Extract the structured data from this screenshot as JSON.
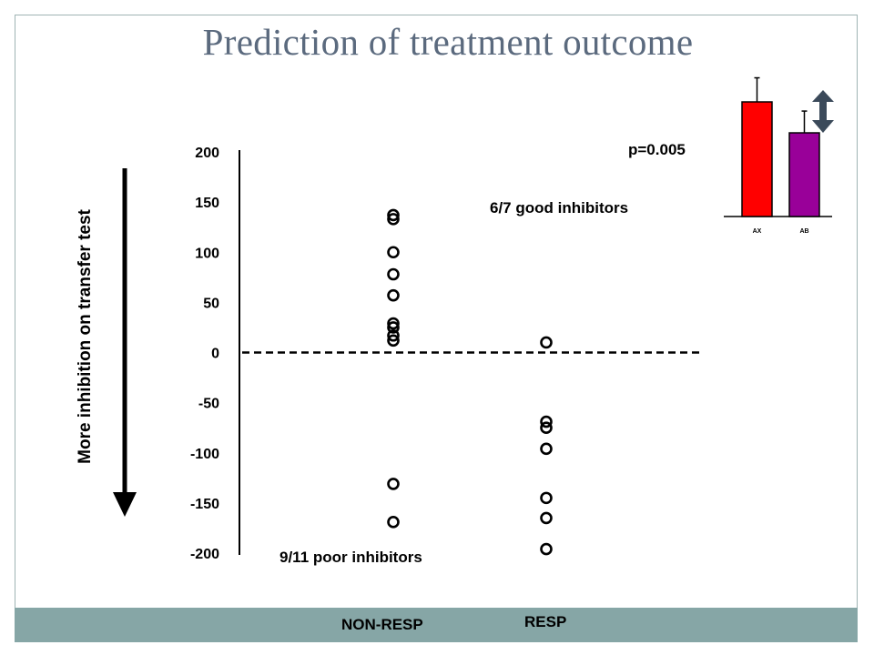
{
  "slide": {
    "title": "Prediction of treatment outcome"
  },
  "annotations": {
    "y_arrow_label": "More inhibition on transfer test",
    "good_inhibitors": "6/7 good inhibitors",
    "poor_inhibitors": "9/11 poor inhibitors",
    "p_value": "p=0.005"
  },
  "footer": {
    "non_resp": "NON-RESP",
    "resp": "RESP"
  },
  "chart_data": [
    {
      "type": "scatter",
      "yticks": [
        200,
        150,
        100,
        50,
        0,
        -50,
        -100,
        -150,
        -200
      ],
      "ylim": [
        -200,
        200
      ],
      "reference_line": 0,
      "series": [
        {
          "group": "NON-RESP",
          "values": [
            137,
            133,
            100,
            78,
            57,
            29,
            25,
            17,
            12,
            -131,
            -169
          ]
        },
        {
          "group": "RESP",
          "values": [
            10,
            -69,
            -75,
            -96,
            -145,
            -165,
            -196
          ]
        }
      ]
    },
    {
      "type": "bar",
      "categories": [
        "AX",
        "AB"
      ],
      "values": [
        100,
        73
      ],
      "error": [
        21,
        19
      ],
      "colors": [
        "#ff0000",
        "#990099"
      ]
    }
  ],
  "colors": {
    "frame": "#9fb3b3",
    "footer": "#86a6a6",
    "title": "#5b6a7e",
    "arrow_double": "#3b4a5a"
  }
}
